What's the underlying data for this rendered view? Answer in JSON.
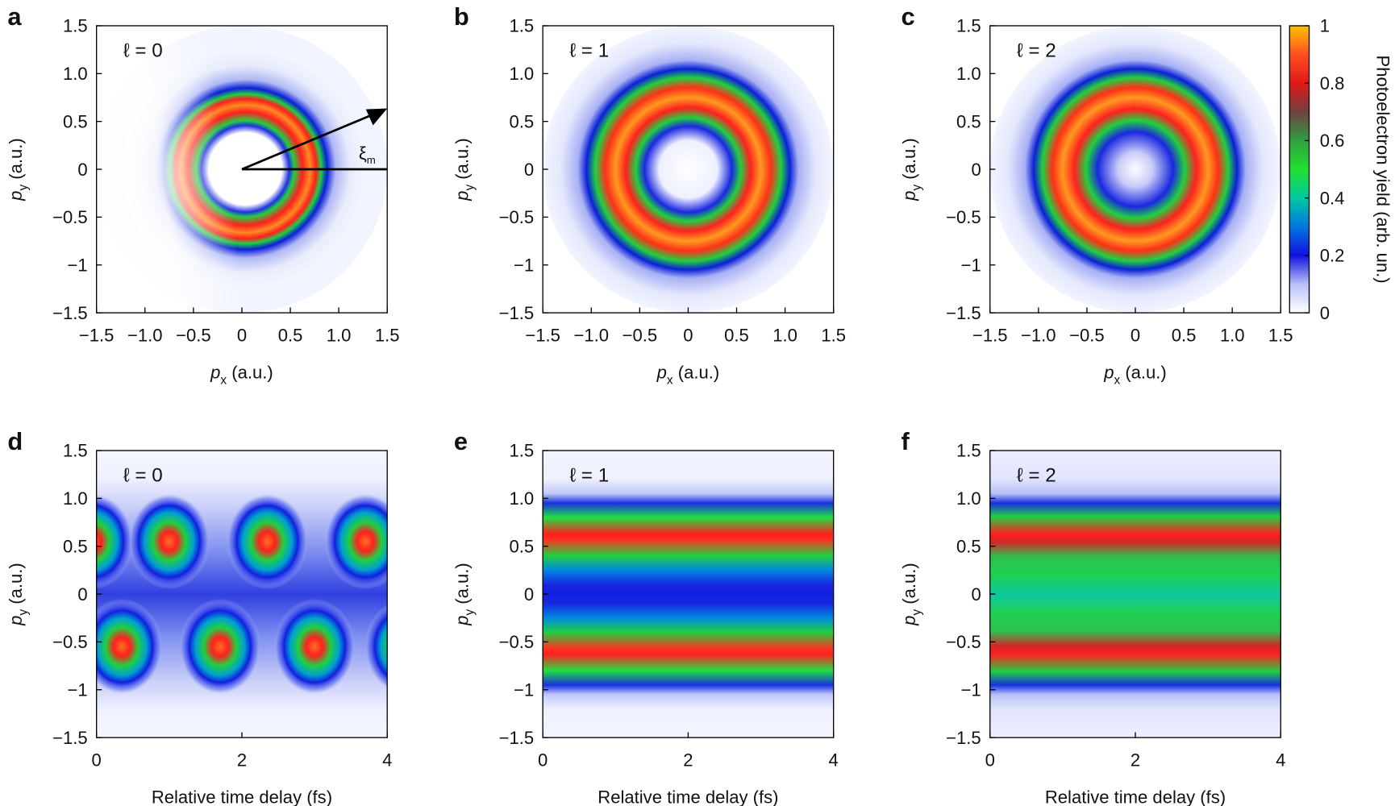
{
  "chart_data": [
    {
      "type": "heatmap",
      "panel": "a",
      "annotation": "ℓ = 0",
      "marker": {
        "symbol": "ξ",
        "subscript": "m"
      },
      "xlabel": {
        "symbol": "p",
        "subscript": "x",
        "text": " (a.u.)"
      },
      "ylabel": {
        "symbol": "p",
        "subscript": "y",
        "text": " (a.u.)"
      },
      "xlim": [
        -1.5,
        1.5
      ],
      "ylim": [
        -1.5,
        1.5
      ],
      "xticks": [
        {
          "value": -1.5,
          "label": "−1.5"
        },
        {
          "value": -1,
          "label": "−1.0"
        },
        {
          "value": -0.5,
          "label": "−0.5"
        },
        0,
        0.5,
        {
          "value": 1,
          "label": "1.0"
        },
        1.5
      ],
      "yticks": [
        {
          "value": -1.5,
          "label": "−1.5"
        },
        {
          "value": -1,
          "label": "−1"
        },
        {
          "value": -0.5,
          "label": "−0.5"
        },
        0,
        0.5,
        {
          "value": 1,
          "label": "1.0"
        },
        1.5
      ]
    },
    {
      "type": "heatmap",
      "panel": "b",
      "annotation": "ℓ = 1",
      "xlabel": {
        "symbol": "p",
        "subscript": "x",
        "text": " (a.u.)"
      },
      "ylabel": {
        "symbol": "p",
        "subscript": "y",
        "text": " (a.u.)"
      },
      "xlim": [
        -1.5,
        1.5
      ],
      "ylim": [
        -1.5,
        1.5
      ],
      "xticks": [
        {
          "value": -1.5,
          "label": "−1.5"
        },
        {
          "value": -1,
          "label": "−1.0"
        },
        {
          "value": -0.5,
          "label": "−0.5"
        },
        0,
        0.5,
        {
          "value": 1,
          "label": "1.0"
        },
        1.5
      ],
      "yticks": [
        {
          "value": -1.5,
          "label": "−1.5"
        },
        {
          "value": -1,
          "label": "−1"
        },
        {
          "value": -0.5,
          "label": "−0.5"
        },
        0,
        0.5,
        {
          "value": 1,
          "label": "1.0"
        },
        1.5
      ]
    },
    {
      "type": "heatmap",
      "panel": "c",
      "annotation": "ℓ = 2",
      "xlabel": {
        "symbol": "p",
        "subscript": "x",
        "text": " (a.u.)"
      },
      "ylabel": {
        "symbol": "p",
        "subscript": "y",
        "text": " (a.u.)"
      },
      "xlim": [
        -1.5,
        1.5
      ],
      "ylim": [
        -1.5,
        1.5
      ],
      "xticks": [
        {
          "value": -1.5,
          "label": "−1.5"
        },
        {
          "value": -1,
          "label": "−1.0"
        },
        {
          "value": -0.5,
          "label": "−0.5"
        },
        0,
        0.5,
        {
          "value": 1,
          "label": "1.0"
        },
        1.5
      ],
      "yticks": [
        {
          "value": -1.5,
          "label": "−1.5"
        },
        {
          "value": -1,
          "label": "−1"
        },
        {
          "value": -0.5,
          "label": "−0.5"
        },
        0,
        0.5,
        {
          "value": 1,
          "label": "1.0"
        },
        1.5
      ]
    },
    {
      "type": "heatmap",
      "panel": "d",
      "annotation": "ℓ = 0",
      "xlabel": {
        "text": "Relative time delay (fs)"
      },
      "ylabel": {
        "symbol": "p",
        "subscript": "y",
        "text": " (a.u.)"
      },
      "xlim": [
        0,
        4
      ],
      "ylim": [
        -1.5,
        1.5
      ],
      "xticks": [
        0,
        2,
        4
      ],
      "yticks": [
        {
          "value": -1.5,
          "label": "−1.5"
        },
        {
          "value": -1,
          "label": "−1"
        },
        {
          "value": -0.5,
          "label": "−0.5"
        },
        0,
        0.5,
        {
          "value": 1,
          "label": "1.0"
        },
        1.5
      ]
    },
    {
      "type": "heatmap",
      "panel": "e",
      "annotation": "ℓ = 1",
      "xlabel": {
        "text": "Relative time delay (fs)"
      },
      "ylabel": {
        "symbol": "p",
        "subscript": "y",
        "text": " (a.u.)"
      },
      "xlim": [
        0,
        4
      ],
      "ylim": [
        -1.5,
        1.5
      ],
      "xticks": [
        0,
        2,
        4
      ],
      "yticks": [
        {
          "value": -1.5,
          "label": "−1.5"
        },
        {
          "value": -1,
          "label": "−1"
        },
        {
          "value": -0.5,
          "label": "−0.5"
        },
        0,
        0.5,
        {
          "value": 1,
          "label": "1.0"
        },
        1.5
      ]
    },
    {
      "type": "heatmap",
      "panel": "f",
      "annotation": "ℓ = 2",
      "xlabel": {
        "text": "Relative time delay (fs)"
      },
      "ylabel": {
        "symbol": "p",
        "subscript": "y",
        "text": " (a.u.)"
      },
      "xlim": [
        0,
        4
      ],
      "ylim": [
        -1.5,
        1.5
      ],
      "xticks": [
        0,
        2,
        4
      ],
      "yticks": [
        {
          "value": -1.5,
          "label": "−1.5"
        },
        {
          "value": -1,
          "label": "−1"
        },
        {
          "value": -0.5,
          "label": "−0.5"
        },
        0,
        0.5,
        {
          "value": 1,
          "label": "1.0"
        },
        1.5
      ]
    },
    {
      "type": "colorbar",
      "label": "Photoelectron yield (arb. un.)",
      "ylim": [
        0,
        1
      ],
      "yticks": [
        0,
        0.2,
        0.4,
        0.6,
        0.8,
        1
      ]
    }
  ]
}
